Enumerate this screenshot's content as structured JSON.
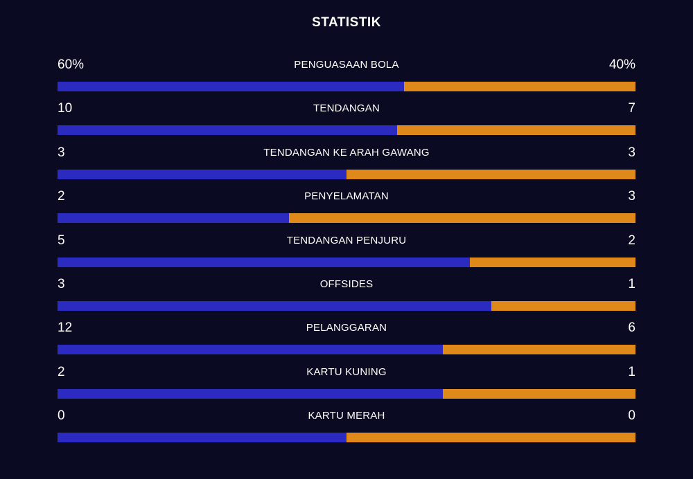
{
  "header": {
    "title": "STATISTIK"
  },
  "colors": {
    "background": "#0a0a22",
    "home": "#2b2bc2",
    "away": "#e0891b",
    "text": "#ffffff"
  },
  "stats": [
    {
      "label": "PENGUASAAN BOLA",
      "home_display": "60%",
      "away_display": "40%",
      "home_share": 0.6
    },
    {
      "label": "TENDANGAN",
      "home_display": "10",
      "away_display": "7",
      "home_share": 0.588
    },
    {
      "label": "TENDANGAN KE ARAH GAWANG",
      "home_display": "3",
      "away_display": "3",
      "home_share": 0.5
    },
    {
      "label": "PENYELAMATAN",
      "home_display": "2",
      "away_display": "3",
      "home_share": 0.4
    },
    {
      "label": "TENDANGAN PENJURU",
      "home_display": "5",
      "away_display": "2",
      "home_share": 0.714
    },
    {
      "label": "OFFSIDES",
      "home_display": "3",
      "away_display": "1",
      "home_share": 0.75
    },
    {
      "label": "PELANGGARAN",
      "home_display": "12",
      "away_display": "6",
      "home_share": 0.667
    },
    {
      "label": "KARTU KUNING",
      "home_display": "2",
      "away_display": "1",
      "home_share": 0.667
    },
    {
      "label": "KARTU MERAH",
      "home_display": "0",
      "away_display": "0",
      "home_share": 0.5
    }
  ]
}
